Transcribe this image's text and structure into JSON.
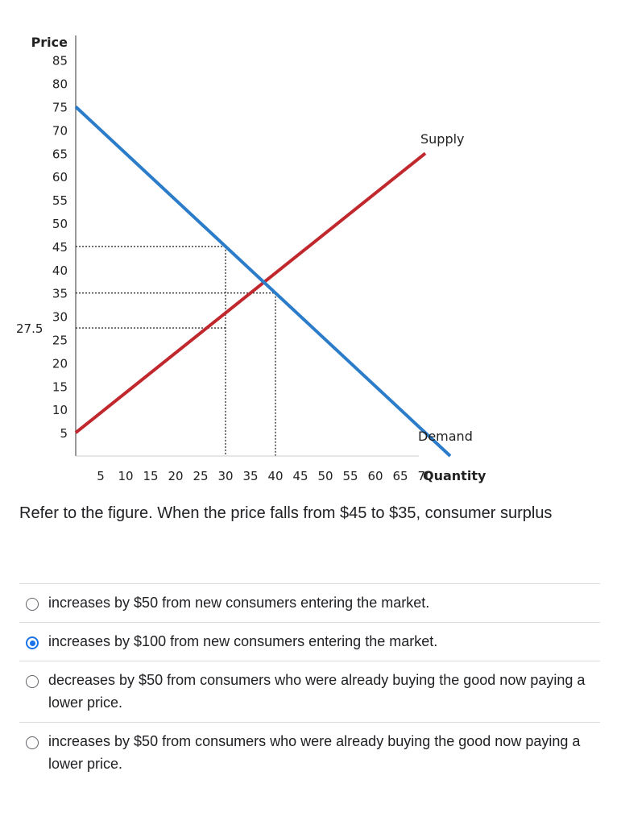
{
  "question": {
    "text": "Refer to the figure. When the price falls from $45 to $35, consumer surplus"
  },
  "options": [
    {
      "label": "increases by $50 from new consumers entering the market.",
      "selected": false
    },
    {
      "label": "increases by $100 from new consumers entering the market.",
      "selected": true
    },
    {
      "label": "decreases by $50 from consumers who were already buying the good now paying a lower price.",
      "selected": false
    },
    {
      "label": "increases by $50 from consumers who were already buying the good now paying a lower price.",
      "selected": false
    }
  ],
  "colors": {
    "supply": "#c0282d",
    "demand": "#2b7cc9",
    "radio_selected": "#1a73e8"
  },
  "chart_data": {
    "type": "line",
    "xlabel": "Quantity",
    "ylabel": "Price",
    "xlim": [
      0,
      75
    ],
    "ylim": [
      0,
      85
    ],
    "x_ticks": [
      5,
      10,
      15,
      20,
      25,
      30,
      35,
      40,
      45,
      50,
      55,
      60,
      65,
      70
    ],
    "y_ticks": [
      5,
      10,
      15,
      20,
      25,
      30,
      35,
      40,
      45,
      50,
      55,
      60,
      65,
      70,
      75,
      80,
      85
    ],
    "extra_y_tick": "27.5",
    "grid": false,
    "series": [
      {
        "name": "Supply",
        "points": [
          [
            0,
            5
          ],
          [
            70,
            65
          ]
        ]
      },
      {
        "name": "Demand",
        "points": [
          [
            0,
            75
          ],
          [
            75,
            0
          ]
        ]
      }
    ],
    "reference_lines": [
      {
        "price": 45,
        "quantity": 30
      },
      {
        "price": 35,
        "quantity": 40
      },
      {
        "price": 27.5,
        "quantity": 30
      }
    ]
  }
}
